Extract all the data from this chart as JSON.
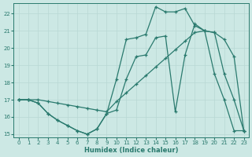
{
  "xlabel": "Humidex (Indice chaleur)",
  "ylabel": "",
  "bg_color": "#cce8e4",
  "grid_color": "#b8d8d4",
  "line_color": "#2a7a6e",
  "marker": "+",
  "xlim": [
    -0.5,
    23.5
  ],
  "ylim": [
    14.8,
    22.6
  ],
  "xticks": [
    0,
    1,
    2,
    3,
    4,
    5,
    6,
    7,
    8,
    9,
    10,
    11,
    12,
    13,
    14,
    15,
    16,
    17,
    18,
    19,
    20,
    21,
    22,
    23
  ],
  "yticks": [
    15,
    16,
    17,
    18,
    19,
    20,
    21,
    22
  ],
  "line1_x": [
    0,
    1,
    2,
    3,
    4,
    5,
    6,
    7,
    8,
    9,
    10,
    11,
    12,
    13,
    14,
    15,
    16,
    17,
    18,
    19,
    20,
    21,
    22,
    23
  ],
  "line1_y": [
    17.0,
    17.0,
    16.8,
    16.2,
    15.8,
    15.5,
    15.2,
    15.0,
    15.3,
    16.2,
    16.4,
    18.2,
    19.5,
    19.6,
    20.6,
    20.7,
    16.3,
    19.6,
    21.4,
    21.0,
    20.9,
    18.5,
    17.0,
    15.2
  ],
  "line2_x": [
    0,
    1,
    2,
    3,
    4,
    5,
    6,
    7,
    8,
    9,
    10,
    11,
    12,
    13,
    14,
    15,
    16,
    17,
    18,
    19,
    20,
    21,
    22,
    23
  ],
  "line2_y": [
    17.0,
    17.0,
    17.0,
    16.9,
    16.8,
    16.7,
    16.6,
    16.5,
    16.4,
    16.3,
    16.9,
    17.4,
    17.9,
    18.4,
    18.9,
    19.4,
    19.9,
    20.4,
    20.9,
    21.0,
    20.9,
    20.5,
    19.5,
    15.2
  ],
  "line3_x": [
    0,
    1,
    2,
    3,
    4,
    5,
    6,
    7,
    8,
    9,
    10,
    11,
    12,
    13,
    14,
    15,
    16,
    17,
    18,
    19,
    20,
    21,
    22,
    23
  ],
  "line3_y": [
    17.0,
    17.0,
    16.8,
    16.2,
    15.8,
    15.5,
    15.2,
    15.0,
    15.3,
    16.2,
    18.2,
    20.5,
    20.6,
    20.8,
    22.4,
    22.1,
    22.1,
    22.3,
    21.3,
    21.0,
    18.5,
    17.0,
    15.2,
    15.2
  ]
}
